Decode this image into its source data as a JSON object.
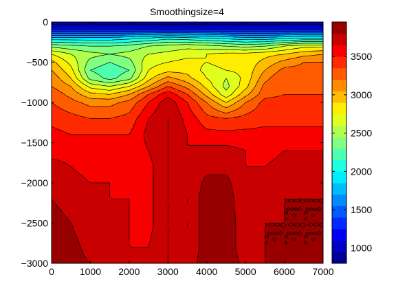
{
  "chart_data": {
    "type": "heatmap",
    "subtype": "filled-contour",
    "title": "Smoothingsize=4",
    "xlabel": "",
    "ylabel": "",
    "xlim": [
      0,
      7000
    ],
    "ylim": [
      -3000,
      0
    ],
    "x_ticks": [
      0,
      1000,
      2000,
      3000,
      4000,
      5000,
      6000,
      7000
    ],
    "y_ticks": [
      0,
      -500,
      -1000,
      -1500,
      -2000,
      -2500,
      -3000
    ],
    "colormap": "jet",
    "colorbar": {
      "range": [
        800,
        3950
      ],
      "ticks": [
        1000,
        1500,
        2000,
        2500,
        3000,
        3500
      ]
    },
    "contour_lines": "black",
    "grid": false,
    "x": [
      0,
      500,
      1000,
      1500,
      2000,
      2500,
      3000,
      3500,
      4000,
      4500,
      5000,
      5500,
      6000,
      6500,
      7000
    ],
    "y": [
      0,
      -100,
      -200,
      -300,
      -400,
      -500,
      -600,
      -700,
      -800,
      -900,
      -1000,
      -1200,
      -1400,
      -1600,
      -1800,
      -2000,
      -2200,
      -2500,
      -2800,
      -3000
    ],
    "z": [
      [
        800,
        800,
        800,
        800,
        800,
        800,
        800,
        800,
        800,
        800,
        800,
        800,
        800,
        800,
        800
      ],
      [
        1300,
        1300,
        1300,
        1300,
        1300,
        1300,
        1300,
        1300,
        1300,
        1300,
        1300,
        1300,
        1300,
        1300,
        1300
      ],
      [
        1900,
        1900,
        1900,
        1900,
        1950,
        2000,
        2100,
        2050,
        2000,
        1950,
        1900,
        1900,
        1950,
        2000,
        2000
      ],
      [
        2400,
        2350,
        2300,
        2300,
        2350,
        2450,
        2500,
        2550,
        2500,
        2450,
        2400,
        2450,
        2600,
        2700,
        2700
      ],
      [
        2750,
        2600,
        2500,
        2450,
        2500,
        2600,
        2650,
        2700,
        2750,
        2800,
        2800,
        2850,
        2900,
        3000,
        3050
      ],
      [
        2950,
        2700,
        2400,
        2300,
        2400,
        2700,
        2750,
        2800,
        2750,
        2800,
        2800,
        2950,
        3100,
        3200,
        3200
      ],
      [
        3050,
        2800,
        2300,
        2200,
        2300,
        2750,
        2850,
        2850,
        2700,
        2750,
        2800,
        3050,
        3250,
        3250,
        3250
      ],
      [
        3150,
        2900,
        2400,
        2250,
        2400,
        2850,
        3100,
        2950,
        2750,
        2600,
        2800,
        3150,
        3350,
        3300,
        3250
      ],
      [
        3200,
        3050,
        2700,
        2600,
        2750,
        3050,
        3350,
        3150,
        2850,
        2550,
        2850,
        3250,
        3300,
        3300,
        3300
      ],
      [
        3300,
        3150,
        2950,
        2900,
        3050,
        3350,
        3600,
        3350,
        3000,
        2650,
        3000,
        3300,
        3350,
        3350,
        3350
      ],
      [
        3350,
        3250,
        3150,
        3150,
        3250,
        3500,
        3750,
        3500,
        3200,
        2900,
        3200,
        3400,
        3400,
        3400,
        3400
      ],
      [
        3450,
        3400,
        3350,
        3350,
        3400,
        3650,
        3800,
        3600,
        3400,
        3350,
        3400,
        3450,
        3450,
        3450,
        3450
      ],
      [
        3550,
        3500,
        3500,
        3500,
        3500,
        3700,
        3800,
        3650,
        3550,
        3550,
        3550,
        3550,
        3550,
        3550,
        3550
      ],
      [
        3600,
        3600,
        3550,
        3550,
        3550,
        3650,
        3800,
        3650,
        3700,
        3700,
        3650,
        3600,
        3650,
        3650,
        3650
      ],
      [
        3700,
        3650,
        3600,
        3600,
        3600,
        3600,
        3800,
        3650,
        3750,
        3750,
        3650,
        3650,
        3700,
        3700,
        3700
      ],
      [
        3750,
        3700,
        3650,
        3650,
        3600,
        3600,
        3800,
        3650,
        3850,
        3850,
        3650,
        3700,
        3750,
        3750,
        3750
      ],
      [
        3800,
        3750,
        3700,
        3650,
        3650,
        3600,
        3800,
        3650,
        3900,
        3900,
        3650,
        3750,
        3800,
        3800,
        3800
      ],
      [
        3850,
        3800,
        3700,
        3700,
        3650,
        3600,
        3800,
        3650,
        3900,
        3900,
        3700,
        3800,
        3800,
        3800,
        3800
      ],
      [
        3850,
        3850,
        3750,
        3700,
        3650,
        3650,
        3800,
        3650,
        3900,
        3900,
        3700,
        3800,
        3800,
        3800,
        3800
      ],
      [
        3850,
        3850,
        3800,
        3750,
        3700,
        3700,
        3800,
        3700,
        3900,
        3900,
        3750,
        3800,
        3800,
        3800,
        3800
      ]
    ]
  }
}
